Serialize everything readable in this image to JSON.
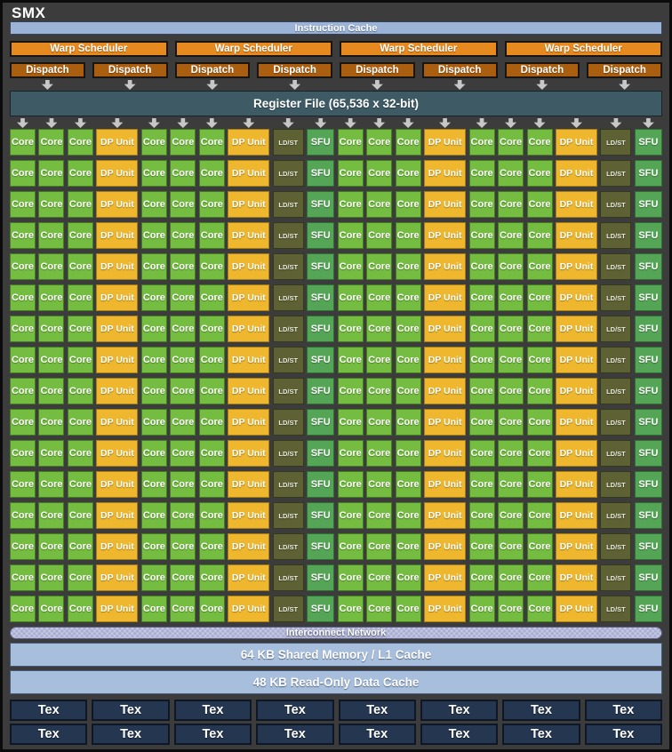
{
  "title": "SMX",
  "background_color": "#3c3c3c",
  "instruction_cache": {
    "label": "Instruction Cache",
    "color": "#9cb3d8"
  },
  "warp_schedulers": {
    "label": "Warp Scheduler",
    "count": 4,
    "color": "#e6891f"
  },
  "dispatch": {
    "label": "Dispatch",
    "count": 8,
    "color": "#aa5e10"
  },
  "register_file": {
    "label": "Register File (65,536 x 32-bit)",
    "color": "#3e5b65"
  },
  "execution_grid": {
    "rows": 16,
    "arrow_color": "#c7c7c7",
    "unit_colors": {
      "core": "#74bd40",
      "dp": "#eeb72d",
      "ldst": "#5d6133",
      "sfu": "#54a556"
    },
    "column_pattern": [
      {
        "type": "core",
        "label": "Core"
      },
      {
        "type": "core",
        "label": "Core"
      },
      {
        "type": "core",
        "label": "Core"
      },
      {
        "type": "dp",
        "label": "DP Unit"
      },
      {
        "type": "core",
        "label": "Core"
      },
      {
        "type": "core",
        "label": "Core"
      },
      {
        "type": "core",
        "label": "Core"
      },
      {
        "type": "dp",
        "label": "DP Unit"
      },
      {
        "type": "ldst",
        "label": "LD/ST"
      },
      {
        "type": "sfu",
        "label": "SFU"
      },
      {
        "type": "core",
        "label": "Core"
      },
      {
        "type": "core",
        "label": "Core"
      },
      {
        "type": "core",
        "label": "Core"
      },
      {
        "type": "dp",
        "label": "DP Unit"
      },
      {
        "type": "core",
        "label": "Core"
      },
      {
        "type": "core",
        "label": "Core"
      },
      {
        "type": "core",
        "label": "Core"
      },
      {
        "type": "dp",
        "label": "DP Unit"
      },
      {
        "type": "ldst",
        "label": "LD/ST"
      },
      {
        "type": "sfu",
        "label": "SFU"
      }
    ]
  },
  "interconnect": {
    "label": "Interconnect Network",
    "color": "#a9aed2"
  },
  "shared_memory": {
    "label": "64 KB Shared Memory / L1 Cache",
    "color": "#a7bedd"
  },
  "readonly_cache": {
    "label": "48 KB Read-Only Data Cache",
    "color": "#a7bedd"
  },
  "tex_units": {
    "label": "Tex",
    "rows": 2,
    "per_row": 8,
    "color": "#243650"
  }
}
